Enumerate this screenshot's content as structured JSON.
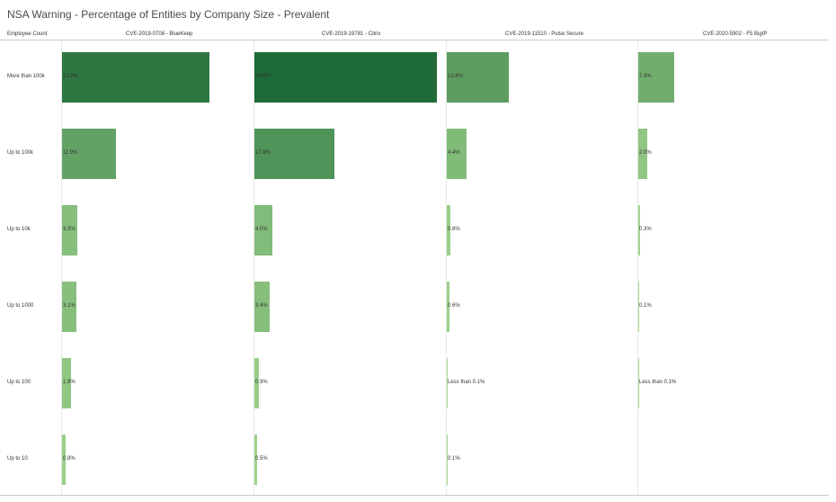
{
  "title": "NSA Warning - Percentage of Entities by Company Size - Prevalent",
  "chart_data": {
    "type": "bar",
    "orientation": "horizontal",
    "title": "NSA Warning - Percentage of Entities by Company Size - Prevalent",
    "row_header": "Employee Count",
    "categories": [
      "More than 100k",
      "Up to 100k",
      "Up to 10k",
      "Up to 1000",
      "Up to 100",
      "Up to 10"
    ],
    "series": [
      {
        "name": "CVE-2019-0708 - BlueKeep",
        "values": [
          32.8,
          11.9,
          3.3,
          3.1,
          1.9,
          0.8
        ],
        "labels": [
          "32.8%",
          "11.9%",
          "3.3%",
          "3.1%",
          "1.9%",
          "0.8%"
        ]
      },
      {
        "name": "CVE-2019-19781 - Citrix",
        "values": [
          40.6,
          17.8,
          4.0,
          3.4,
          0.9,
          0.5
        ],
        "labels": [
          "40.6%",
          "17.8%",
          "4.0%",
          "3.4%",
          "0.9%",
          "0.5%"
        ]
      },
      {
        "name": "CVE-2019-11510 - Pulse Secure",
        "values": [
          13.8,
          4.4,
          0.8,
          0.6,
          0.05,
          0.1
        ],
        "labels": [
          "13.8%",
          "4.4%",
          "0.8%",
          "0.6%",
          "Less than 0.1%",
          "0.1%"
        ]
      },
      {
        "name": "CVE-2020-5902 - F5 BigIP",
        "values": [
          7.9,
          2.0,
          0.3,
          0.1,
          0.05,
          null
        ],
        "labels": [
          "7.9%",
          "2.0%",
          "0.3%",
          "0.1%",
          "Less than 0.1%",
          null
        ]
      }
    ],
    "xlim": [
      0,
      41
    ],
    "color_scale": {
      "low": "#a9dc93",
      "high": "#1e6a38"
    },
    "grid": false,
    "legend": "none"
  }
}
